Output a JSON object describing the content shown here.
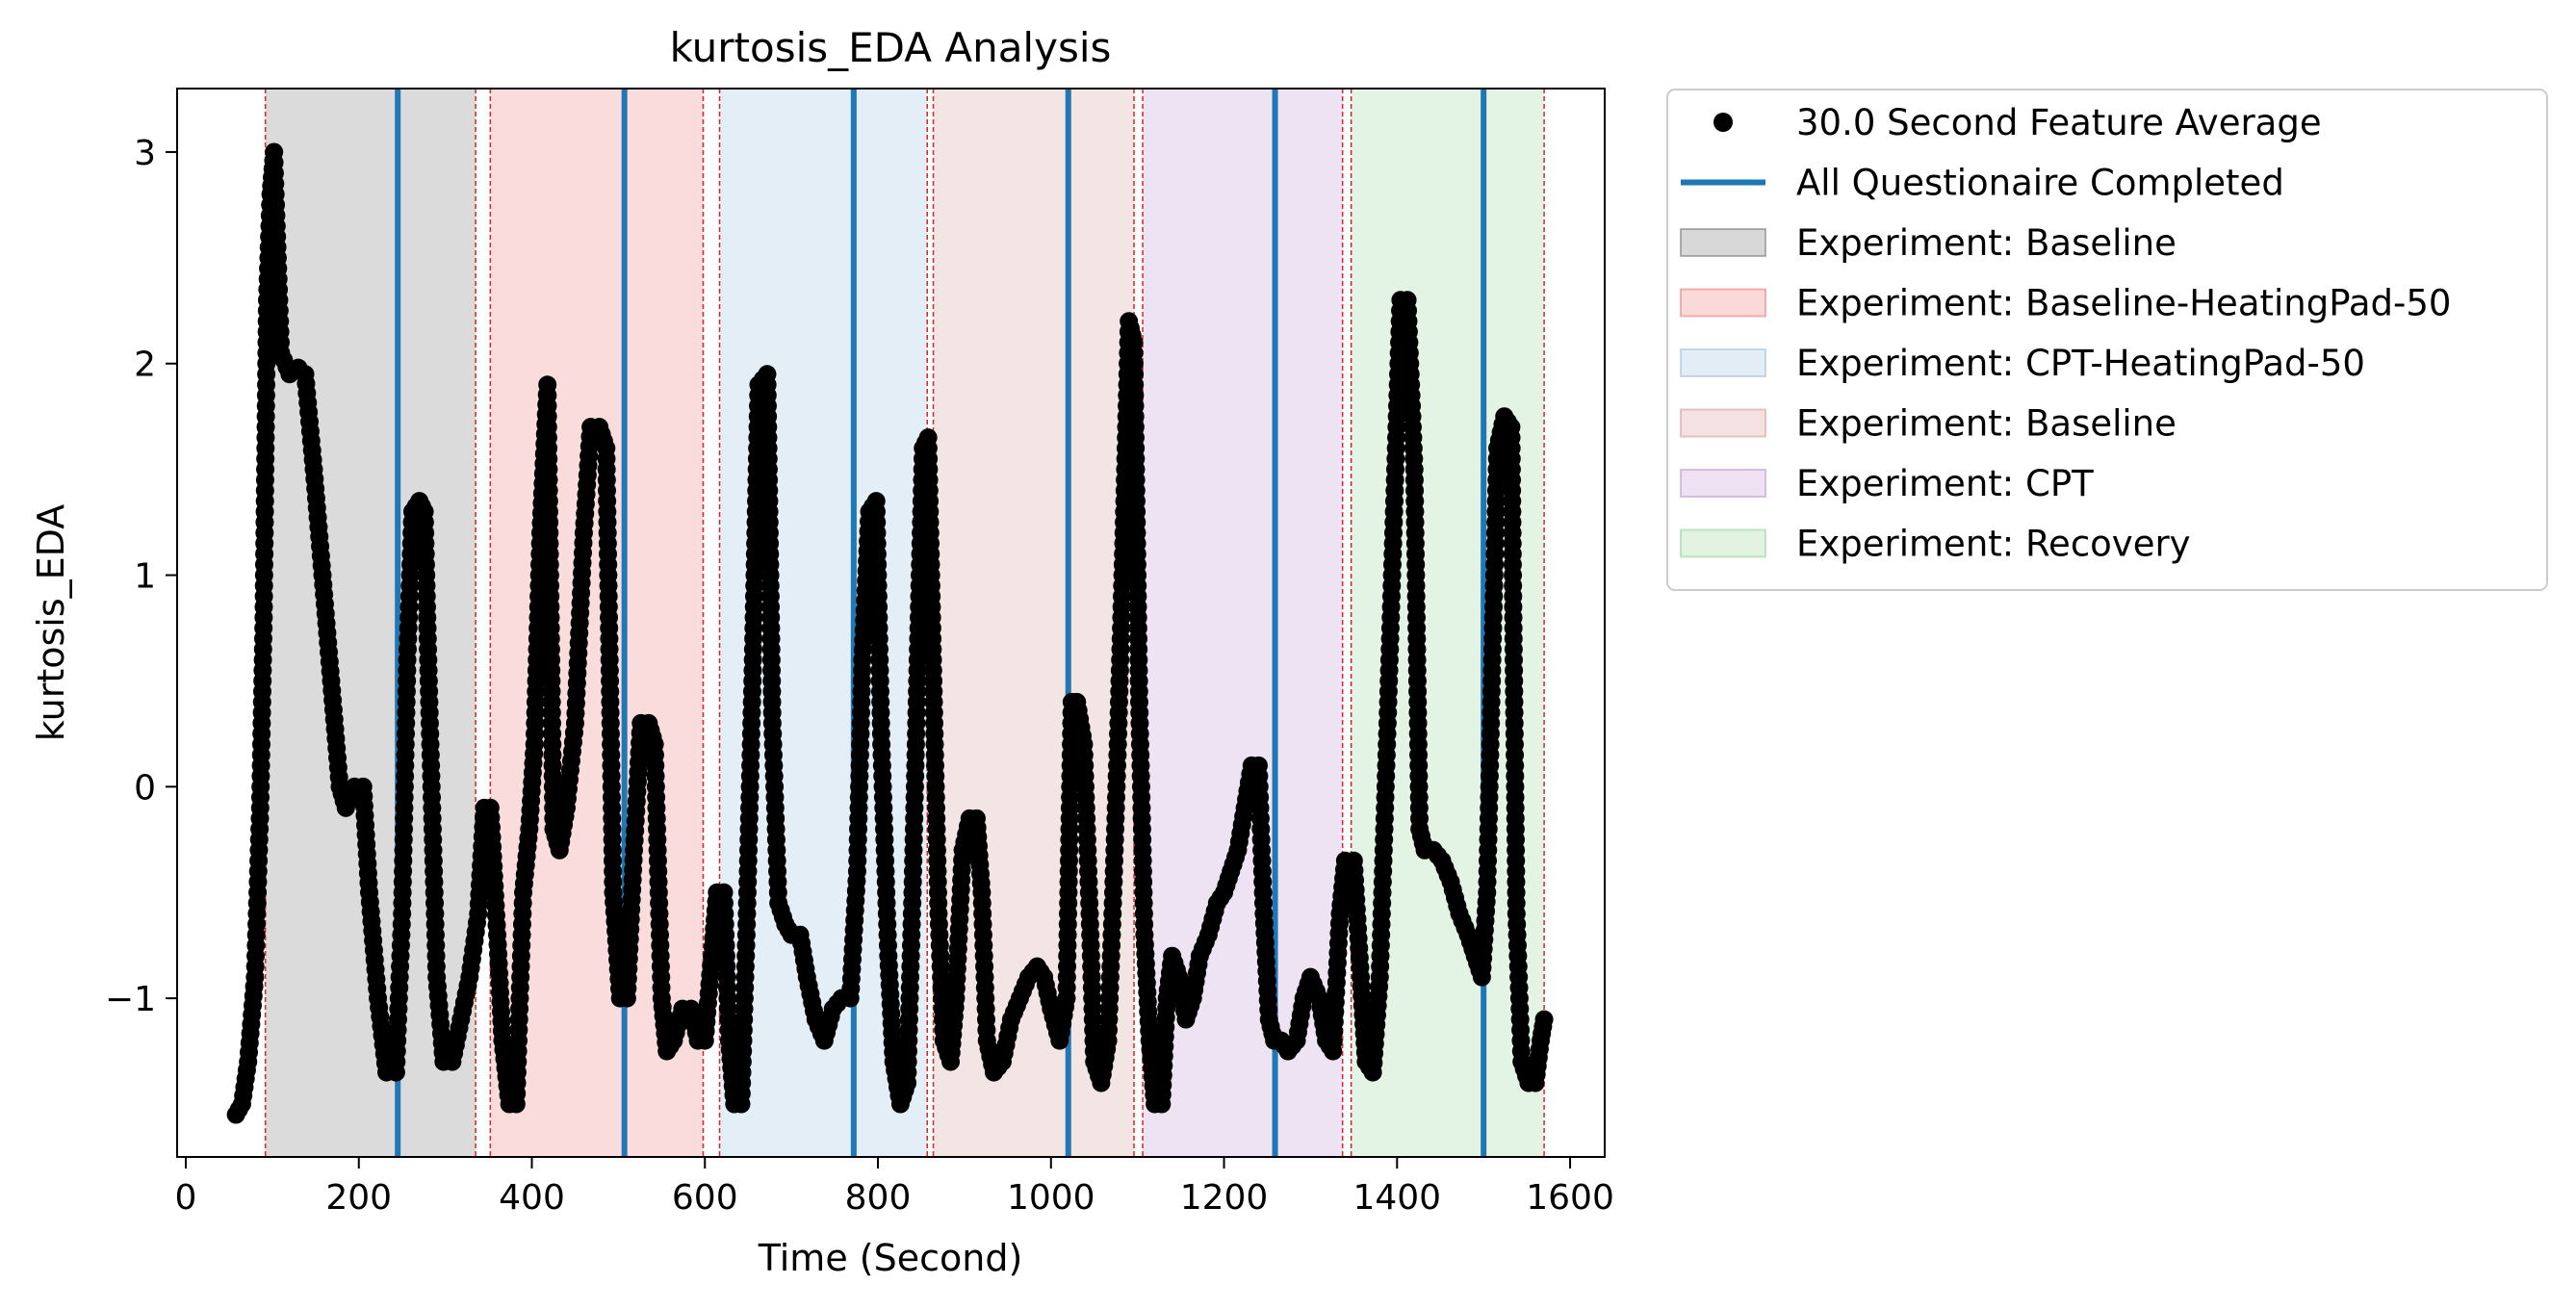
{
  "chart_data": {
    "type": "scatter",
    "title": "kurtosis_EDA Analysis",
    "xlabel": "Time (Second)",
    "ylabel": "kurtosis_EDA",
    "xlim": [
      -10,
      1640
    ],
    "ylim": [
      -1.75,
      3.3
    ],
    "x_ticks": [
      0,
      200,
      400,
      600,
      800,
      1000,
      1200,
      1400,
      1600
    ],
    "x_tick_labels": [
      "0",
      "200",
      "400",
      "600",
      "800",
      "1000",
      "1200",
      "1400",
      "1600"
    ],
    "y_ticks": [
      -1,
      0,
      1,
      2,
      3
    ],
    "y_tick_labels": [
      "−1",
      "0",
      "1",
      "2",
      "3"
    ],
    "grid": false,
    "legend_position": "outside-right-top",
    "legend": [
      {
        "label": "30.0 Second Feature Average",
        "kind": "marker",
        "color": "#000000"
      },
      {
        "label": "All Questionaire Completed",
        "kind": "line",
        "color": "#1f77b4"
      },
      {
        "label": "Experiment: Baseline",
        "kind": "patch",
        "color": "#7f7f7f"
      },
      {
        "label": "Experiment: Baseline-HeatingPad-50",
        "kind": "patch",
        "color": "#f08080"
      },
      {
        "label": "Experiment: CPT-HeatingPad-50",
        "kind": "patch",
        "color": "#9ec3e0"
      },
      {
        "label": "Experiment: Baseline",
        "kind": "patch",
        "color": "#d9a0a0"
      },
      {
        "label": "Experiment: CPT",
        "kind": "patch",
        "color": "#c39bd3"
      },
      {
        "label": "Experiment: Recovery",
        "kind": "patch",
        "color": "#9fd69f"
      }
    ],
    "phases": [
      {
        "label": "Experiment: Baseline",
        "start": 92,
        "end": 335,
        "color": "#7f7f7f"
      },
      {
        "label": "Experiment: Baseline-HeatingPad-50",
        "start": 352,
        "end": 598,
        "color": "#f08080"
      },
      {
        "label": "Experiment: CPT-HeatingPad-50",
        "start": 617,
        "end": 857,
        "color": "#9ec3e0"
      },
      {
        "label": "Experiment: Baseline",
        "start": 864,
        "end": 1096,
        "color": "#d9a0a0"
      },
      {
        "label": "Experiment: CPT",
        "start": 1106,
        "end": 1337,
        "color": "#c39bd3"
      },
      {
        "label": "Experiment: Recovery",
        "start": 1347,
        "end": 1570,
        "color": "#9fd69f"
      }
    ],
    "questionnaire_completed_x": [
      245,
      507,
      772,
      1020,
      1259,
      1500
    ],
    "boundary_lines_x": [
      92,
      335,
      352,
      598,
      617,
      857,
      864,
      1096,
      1106,
      1337,
      1347,
      1570
    ],
    "series": [
      {
        "name": "30.0 Second Feature Average",
        "keypoints": [
          [
            58,
            -1.55
          ],
          [
            65,
            -1.5
          ],
          [
            72,
            -1.3
          ],
          [
            80,
            -0.9
          ],
          [
            86,
            -0.1
          ],
          [
            90,
            0.8
          ],
          [
            94,
            2.3
          ],
          [
            98,
            2.8
          ],
          [
            102,
            3.0
          ],
          [
            110,
            2.05
          ],
          [
            120,
            1.95
          ],
          [
            130,
            1.98
          ],
          [
            138,
            1.95
          ],
          [
            148,
            1.5
          ],
          [
            158,
            1.0
          ],
          [
            168,
            0.5
          ],
          [
            178,
            0.0
          ],
          [
            185,
            -0.1
          ],
          [
            195,
            0.0
          ],
          [
            205,
            0.0
          ],
          [
            212,
            -0.5
          ],
          [
            222,
            -1.0
          ],
          [
            232,
            -1.35
          ],
          [
            243,
            -1.35
          ],
          [
            250,
            -0.6
          ],
          [
            256,
            0.6
          ],
          [
            262,
            1.3
          ],
          [
            270,
            1.35
          ],
          [
            276,
            1.3
          ],
          [
            282,
            0.3
          ],
          [
            290,
            -0.9
          ],
          [
            298,
            -1.3
          ],
          [
            308,
            -1.3
          ],
          [
            318,
            -1.1
          ],
          [
            328,
            -0.9
          ],
          [
            338,
            -0.6
          ],
          [
            345,
            -0.1
          ],
          [
            352,
            -0.1
          ],
          [
            360,
            -0.7
          ],
          [
            366,
            -1.2
          ],
          [
            374,
            -1.5
          ],
          [
            382,
            -1.5
          ],
          [
            390,
            -0.5
          ],
          [
            397,
            -0.2
          ],
          [
            403,
            0.2
          ],
          [
            410,
            1.2
          ],
          [
            418,
            1.9
          ],
          [
            425,
            -0.2
          ],
          [
            432,
            -0.3
          ],
          [
            440,
            -0.1
          ],
          [
            450,
            0.3
          ],
          [
            460,
            1.2
          ],
          [
            468,
            1.7
          ],
          [
            478,
            1.7
          ],
          [
            486,
            1.6
          ],
          [
            494,
            -0.5
          ],
          [
            502,
            -1.0
          ],
          [
            510,
            -1.0
          ],
          [
            518,
            -0.3
          ],
          [
            526,
            0.3
          ],
          [
            535,
            0.3
          ],
          [
            542,
            0.2
          ],
          [
            550,
            -1.0
          ],
          [
            556,
            -1.25
          ],
          [
            564,
            -1.2
          ],
          [
            574,
            -1.05
          ],
          [
            584,
            -1.05
          ],
          [
            592,
            -1.2
          ],
          [
            600,
            -1.2
          ],
          [
            608,
            -0.8
          ],
          [
            614,
            -0.5
          ],
          [
            622,
            -0.5
          ],
          [
            628,
            -1.2
          ],
          [
            634,
            -1.5
          ],
          [
            642,
            -1.5
          ],
          [
            648,
            -0.7
          ],
          [
            655,
            0.5
          ],
          [
            662,
            1.9
          ],
          [
            672,
            1.95
          ],
          [
            678,
            0.3
          ],
          [
            685,
            -0.55
          ],
          [
            693,
            -0.65
          ],
          [
            700,
            -0.7
          ],
          [
            710,
            -0.7
          ],
          [
            718,
            -0.9
          ],
          [
            728,
            -1.1
          ],
          [
            738,
            -1.2
          ],
          [
            748,
            -1.05
          ],
          [
            758,
            -1.0
          ],
          [
            768,
            -1.0
          ],
          [
            776,
            -0.4
          ],
          [
            782,
            0.6
          ],
          [
            790,
            1.3
          ],
          [
            798,
            1.35
          ],
          [
            804,
            0.2
          ],
          [
            812,
            -0.8
          ],
          [
            818,
            -1.3
          ],
          [
            826,
            -1.5
          ],
          [
            834,
            -1.4
          ],
          [
            840,
            -0.5
          ],
          [
            846,
            0.6
          ],
          [
            852,
            1.6
          ],
          [
            858,
            1.65
          ],
          [
            864,
            0.5
          ],
          [
            870,
            -0.6
          ],
          [
            876,
            -1.2
          ],
          [
            884,
            -1.3
          ],
          [
            890,
            -1.0
          ],
          [
            898,
            -0.3
          ],
          [
            906,
            -0.15
          ],
          [
            914,
            -0.15
          ],
          [
            920,
            -0.5
          ],
          [
            926,
            -1.2
          ],
          [
            934,
            -1.35
          ],
          [
            944,
            -1.3
          ],
          [
            954,
            -1.1
          ],
          [
            964,
            -1.0
          ],
          [
            974,
            -0.9
          ],
          [
            984,
            -0.85
          ],
          [
            992,
            -0.9
          ],
          [
            1000,
            -1.05
          ],
          [
            1010,
            -1.2
          ],
          [
            1018,
            -1.0
          ],
          [
            1024,
            0.4
          ],
          [
            1030,
            0.4
          ],
          [
            1038,
            0.2
          ],
          [
            1044,
            -0.5
          ],
          [
            1050,
            -1.3
          ],
          [
            1058,
            -1.4
          ],
          [
            1066,
            -1.2
          ],
          [
            1072,
            -0.5
          ],
          [
            1078,
            0.3
          ],
          [
            1084,
            1.2
          ],
          [
            1090,
            2.2
          ],
          [
            1096,
            2.1
          ],
          [
            1102,
            0.4
          ],
          [
            1108,
            -0.7
          ],
          [
            1114,
            -1.2
          ],
          [
            1120,
            -1.5
          ],
          [
            1128,
            -1.5
          ],
          [
            1134,
            -1.0
          ],
          [
            1140,
            -0.8
          ],
          [
            1148,
            -0.9
          ],
          [
            1156,
            -1.1
          ],
          [
            1164,
            -1.0
          ],
          [
            1172,
            -0.8
          ],
          [
            1182,
            -0.7
          ],
          [
            1192,
            -0.55
          ],
          [
            1200,
            -0.5
          ],
          [
            1208,
            -0.4
          ],
          [
            1216,
            -0.3
          ],
          [
            1224,
            -0.1
          ],
          [
            1232,
            0.1
          ],
          [
            1240,
            0.1
          ],
          [
            1246,
            -0.6
          ],
          [
            1252,
            -1.1
          ],
          [
            1258,
            -1.2
          ],
          [
            1266,
            -1.2
          ],
          [
            1274,
            -1.25
          ],
          [
            1284,
            -1.2
          ],
          [
            1292,
            -1.0
          ],
          [
            1300,
            -0.9
          ],
          [
            1310,
            -1.0
          ],
          [
            1318,
            -1.2
          ],
          [
            1326,
            -1.25
          ],
          [
            1334,
            -0.6
          ],
          [
            1340,
            -0.35
          ],
          [
            1350,
            -0.35
          ],
          [
            1358,
            -0.9
          ],
          [
            1364,
            -1.3
          ],
          [
            1372,
            -1.35
          ],
          [
            1380,
            -0.9
          ],
          [
            1386,
            -0.1
          ],
          [
            1392,
            0.7
          ],
          [
            1398,
            1.5
          ],
          [
            1404,
            2.3
          ],
          [
            1412,
            2.3
          ],
          [
            1420,
            1.5
          ],
          [
            1426,
            -0.2
          ],
          [
            1432,
            -0.3
          ],
          [
            1442,
            -0.3
          ],
          [
            1452,
            -0.35
          ],
          [
            1462,
            -0.45
          ],
          [
            1472,
            -0.6
          ],
          [
            1482,
            -0.7
          ],
          [
            1490,
            -0.8
          ],
          [
            1498,
            -0.9
          ],
          [
            1504,
            -0.5
          ],
          [
            1510,
            0.6
          ],
          [
            1516,
            1.6
          ],
          [
            1524,
            1.75
          ],
          [
            1532,
            1.7
          ],
          [
            1538,
            -0.6
          ],
          [
            1544,
            -1.3
          ],
          [
            1552,
            -1.4
          ],
          [
            1560,
            -1.4
          ],
          [
            1566,
            -1.2
          ],
          [
            1570,
            -1.1
          ]
        ]
      }
    ]
  }
}
